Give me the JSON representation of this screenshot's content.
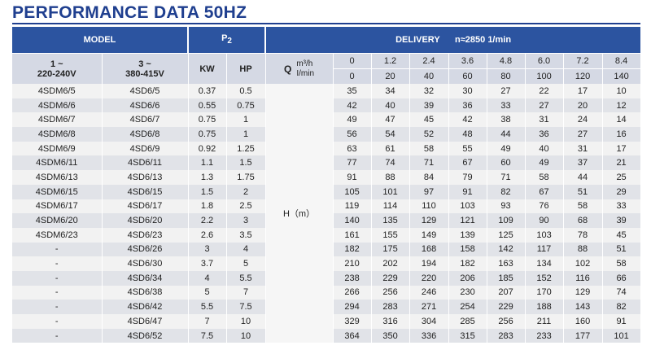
{
  "title": "PERFORMANCE DATA 50HZ",
  "header": {
    "model": "MODEL",
    "p2_main": "P",
    "p2_sub": "2",
    "delivery": "DELIVERY",
    "speed": "n≈2850 1/min"
  },
  "subheader": {
    "col1_line1": "1 ~",
    "col1_line2": "220-240V",
    "col2_line1": "3 ~",
    "col2_line2": "380-415V",
    "kw": "KW",
    "hp": "HP",
    "q_label": "Q",
    "q_unit_m3h": "m³/h",
    "q_unit_lmin": "I/min",
    "h_label": "H（m）"
  },
  "flow_m3h": [
    "0",
    "1.2",
    "2.4",
    "3.6",
    "4.8",
    "6.0",
    "7.2",
    "8.4"
  ],
  "flow_lmin": [
    "0",
    "20",
    "40",
    "60",
    "80",
    "100",
    "120",
    "140"
  ],
  "rows": [
    {
      "m1": "4SDM6/5",
      "m3": "4SD6/5",
      "kw": "0.37",
      "hp": "0.5",
      "h": [
        "35",
        "34",
        "32",
        "30",
        "27",
        "22",
        "17",
        "10"
      ]
    },
    {
      "m1": "4SDM6/6",
      "m3": "4SD6/6",
      "kw": "0.55",
      "hp": "0.75",
      "h": [
        "42",
        "40",
        "39",
        "36",
        "33",
        "27",
        "20",
        "12"
      ]
    },
    {
      "m1": "4SDM6/7",
      "m3": "4SD6/7",
      "kw": "0.75",
      "hp": "1",
      "h": [
        "49",
        "47",
        "45",
        "42",
        "38",
        "31",
        "24",
        "14"
      ]
    },
    {
      "m1": "4SDM6/8",
      "m3": "4SD6/8",
      "kw": "0.75",
      "hp": "1",
      "h": [
        "56",
        "54",
        "52",
        "48",
        "44",
        "36",
        "27",
        "16"
      ]
    },
    {
      "m1": "4SDM6/9",
      "m3": "4SD6/9",
      "kw": "0.92",
      "hp": "1.25",
      "h": [
        "63",
        "61",
        "58",
        "55",
        "49",
        "40",
        "31",
        "17"
      ]
    },
    {
      "m1": "4SDM6/11",
      "m3": "4SD6/11",
      "kw": "1.1",
      "hp": "1.5",
      "h": [
        "77",
        "74",
        "71",
        "67",
        "60",
        "49",
        "37",
        "21"
      ]
    },
    {
      "m1": "4SDM6/13",
      "m3": "4SD6/13",
      "kw": "1.3",
      "hp": "1.75",
      "h": [
        "91",
        "88",
        "84",
        "79",
        "71",
        "58",
        "44",
        "25"
      ]
    },
    {
      "m1": "4SDM6/15",
      "m3": "4SD6/15",
      "kw": "1.5",
      "hp": "2",
      "h": [
        "105",
        "101",
        "97",
        "91",
        "82",
        "67",
        "51",
        "29"
      ]
    },
    {
      "m1": "4SDM6/17",
      "m3": "4SD6/17",
      "kw": "1.8",
      "hp": "2.5",
      "h": [
        "119",
        "114",
        "110",
        "103",
        "93",
        "76",
        "58",
        "33"
      ]
    },
    {
      "m1": "4SDM6/20",
      "m3": "4SD6/20",
      "kw": "2.2",
      "hp": "3",
      "h": [
        "140",
        "135",
        "129",
        "121",
        "109",
        "90",
        "68",
        "39"
      ]
    },
    {
      "m1": "4SDM6/23",
      "m3": "4SD6/23",
      "kw": "2.6",
      "hp": "3.5",
      "h": [
        "161",
        "155",
        "149",
        "139",
        "125",
        "103",
        "78",
        "45"
      ]
    },
    {
      "m1": "-",
      "m3": "4SD6/26",
      "kw": "3",
      "hp": "4",
      "h": [
        "182",
        "175",
        "168",
        "158",
        "142",
        "117",
        "88",
        "51"
      ]
    },
    {
      "m1": "-",
      "m3": "4SD6/30",
      "kw": "3.7",
      "hp": "5",
      "h": [
        "210",
        "202",
        "194",
        "182",
        "163",
        "134",
        "102",
        "58"
      ]
    },
    {
      "m1": "-",
      "m3": "4SD6/34",
      "kw": "4",
      "hp": "5.5",
      "h": [
        "238",
        "229",
        "220",
        "206",
        "185",
        "152",
        "116",
        "66"
      ]
    },
    {
      "m1": "-",
      "m3": "4SD6/38",
      "kw": "5",
      "hp": "7",
      "h": [
        "266",
        "256",
        "246",
        "230",
        "207",
        "170",
        "129",
        "74"
      ]
    },
    {
      "m1": "-",
      "m3": "4SD6/42",
      "kw": "5.5",
      "hp": "7.5",
      "h": [
        "294",
        "283",
        "271",
        "254",
        "229",
        "188",
        "143",
        "82"
      ]
    },
    {
      "m1": "-",
      "m3": "4SD6/47",
      "kw": "7",
      "hp": "10",
      "h": [
        "329",
        "316",
        "304",
        "285",
        "256",
        "211",
        "160",
        "91"
      ]
    },
    {
      "m1": "-",
      "m3": "4SD6/52",
      "kw": "7.5",
      "hp": "10",
      "h": [
        "364",
        "350",
        "336",
        "315",
        "283",
        "233",
        "177",
        "101"
      ]
    }
  ]
}
